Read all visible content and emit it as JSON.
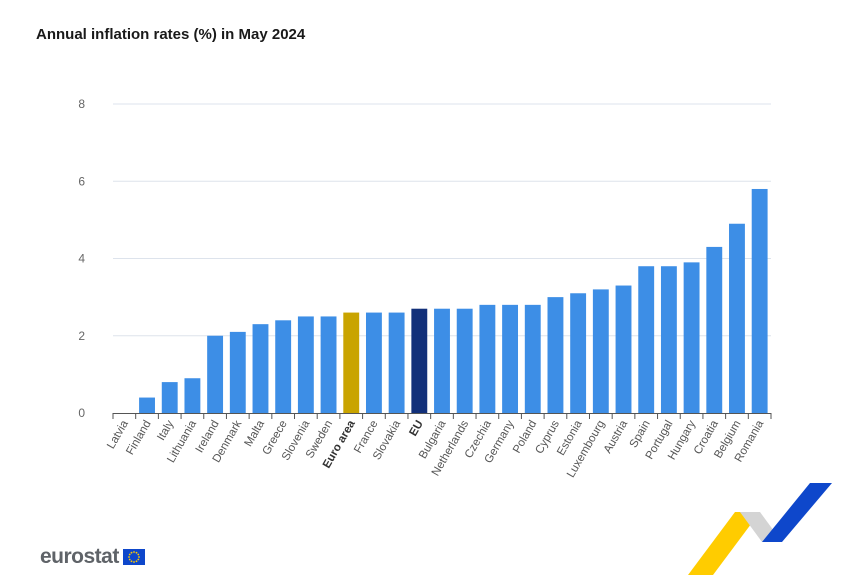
{
  "colors": {
    "bar": "#3d8ee6",
    "highlight_euro_area": "#c9a400",
    "highlight_eu": "#12307a",
    "grid": "#dde3ec",
    "logo_blue": "#0e47cb",
    "logo_yellow": "#ffcc00"
  },
  "logo": {
    "text": "eurostat"
  },
  "chart_data": {
    "type": "bar",
    "title": "Annual inflation rates (%) in May 2024",
    "xlabel": "",
    "ylabel": "",
    "ylim": [
      0,
      8
    ],
    "yticks": [
      0,
      2,
      4,
      6,
      8
    ],
    "grid": true,
    "categories": [
      "Latvia",
      "Finland",
      "Italy",
      "Lithuania",
      "Ireland",
      "Denmark",
      "Malta",
      "Greece",
      "Slovenia",
      "Sweden",
      "Euro area",
      "France",
      "Slovakia",
      "EU",
      "Bulgaria",
      "Netherlands",
      "Czechia",
      "Germany",
      "Poland",
      "Cyprus",
      "Estonia",
      "Luxembourg",
      "Austria",
      "Spain",
      "Portugal",
      "Hungary",
      "Croatia",
      "Belgium",
      "Romania"
    ],
    "values": [
      0.0,
      0.4,
      0.8,
      0.9,
      2.0,
      2.1,
      2.3,
      2.4,
      2.5,
      2.5,
      2.6,
      2.6,
      2.6,
      2.7,
      2.7,
      2.7,
      2.8,
      2.8,
      2.8,
      3.0,
      3.1,
      3.2,
      3.3,
      3.8,
      3.8,
      3.9,
      4.3,
      4.9,
      5.8
    ],
    "highlighted": {
      "Euro area": "highlight_euro_area",
      "EU": "highlight_eu"
    }
  }
}
